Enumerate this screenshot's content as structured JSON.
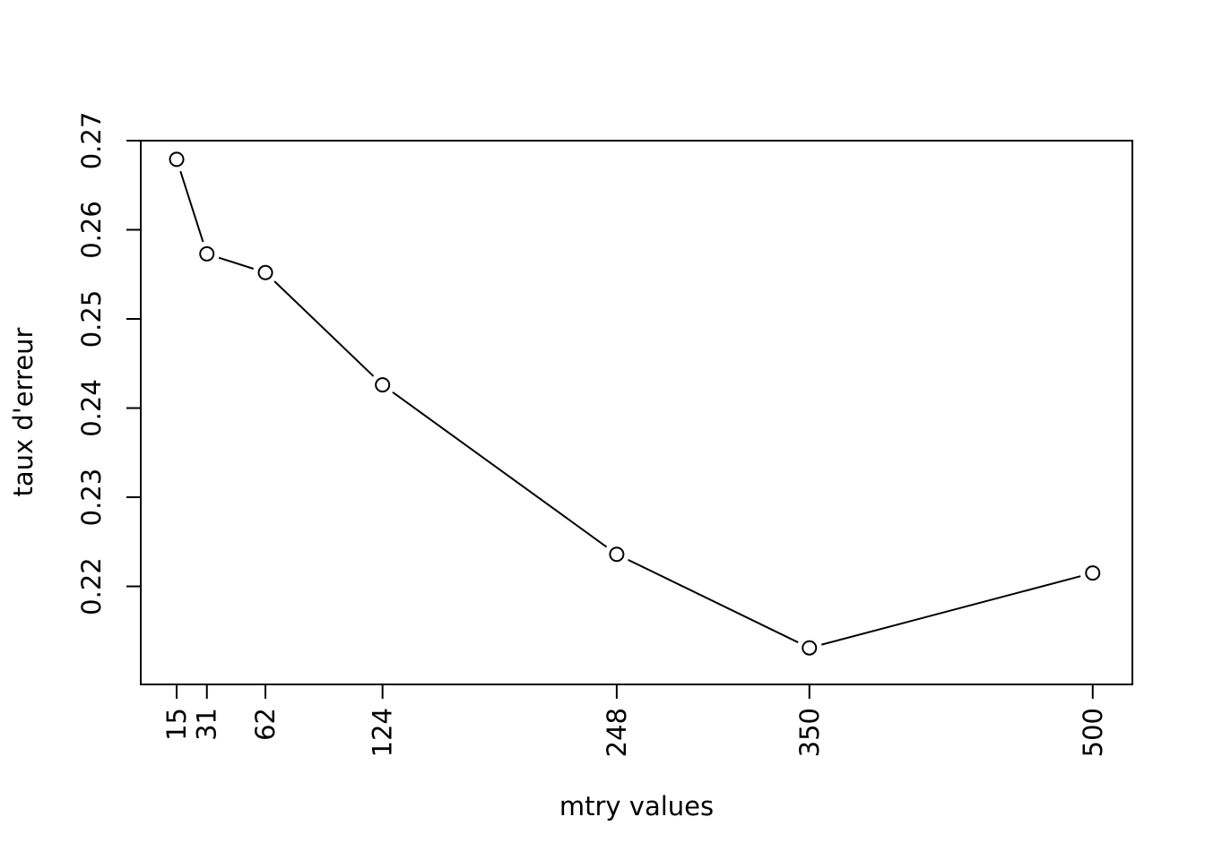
{
  "chart_data": {
    "type": "line",
    "title": "",
    "xlabel": "mtry values",
    "ylabel": "taux d'erreur",
    "x": [
      15,
      31,
      62,
      124,
      248,
      350,
      500
    ],
    "series": [
      {
        "values": [
          0.2679,
          0.2573,
          0.2552,
          0.2426,
          0.2236,
          0.2131,
          0.2215
        ]
      }
    ],
    "xticks": [
      "15",
      "31",
      "62",
      "124",
      "248",
      "350",
      "500"
    ],
    "yticks": [
      "0.22",
      "0.23",
      "0.24",
      "0.25",
      "0.26",
      "0.27"
    ],
    "xlim": [
      -4,
      521
    ],
    "ylim": [
      0.209,
      0.27
    ],
    "marker": "open-circle",
    "grid": false,
    "legend": "none",
    "colors": {
      "line": "#000000",
      "background": "#ffffff"
    }
  }
}
